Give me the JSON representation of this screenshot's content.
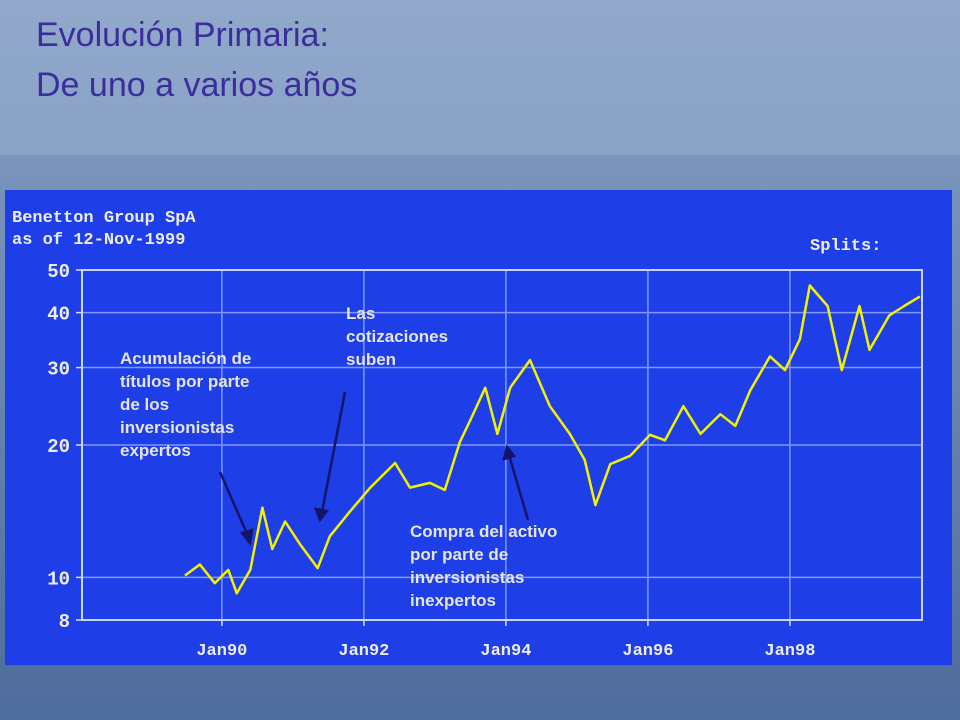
{
  "chart_data": {
    "type": "line",
    "title": [
      "Evolución Primaria:",
      "De uno a varios años"
    ],
    "chart_header": [
      "Benetton Group SpA",
      "as of 12-Nov-1999"
    ],
    "splits_label": "Splits:",
    "annotations": [
      [
        "Acumulación de",
        "títulos por parte",
        "de los",
        "inversionistas",
        "expertos"
      ],
      [
        "Las",
        "cotizaciones",
        "suben"
      ],
      [
        "Compra del activo",
        "por parte de",
        "inversionistas",
        "inexpertos"
      ]
    ],
    "x": [
      1989.48,
      1989.69,
      1989.9,
      1990.09,
      1990.21,
      1990.4,
      1990.57,
      1990.71,
      1990.89,
      1991.1,
      1991.35,
      1991.52,
      1991.8,
      1992.09,
      1992.44,
      1992.65,
      1992.93,
      1993.14,
      1993.35,
      1993.5,
      1993.71,
      1993.88,
      1994.06,
      1994.34,
      1994.62,
      1994.9,
      1995.11,
      1995.26,
      1995.47,
      1995.75,
      1996.03,
      1996.24,
      1996.5,
      1996.74,
      1997.02,
      1997.23,
      1997.44,
      1997.72,
      1997.93,
      1998.14,
      1998.28,
      1998.53,
      1998.73,
      1998.98,
      1999.12,
      1999.4,
      1999.61,
      1999.83
    ],
    "values": [
      10.1,
      10.7,
      9.7,
      10.4,
      9.2,
      10.4,
      14.4,
      11.6,
      13.4,
      11.9,
      10.5,
      12.4,
      14.1,
      16.0,
      18.2,
      16.0,
      16.4,
      15.8,
      20.3,
      22.8,
      27.0,
      21.2,
      27.0,
      31.2,
      24.5,
      21.2,
      18.5,
      14.6,
      18.1,
      18.9,
      21.1,
      20.5,
      24.5,
      21.2,
      23.5,
      22.1,
      26.6,
      31.8,
      29.6,
      34.8,
      46.1,
      41.4,
      29.6,
      41.4,
      32.9,
      39.4,
      41.4,
      43.5
    ],
    "color": "#f2f200",
    "xlim": [
      1988.03,
      1999.86
    ],
    "xticks": [
      {
        "value": 1990,
        "label": "Jan90"
      },
      {
        "value": 1992,
        "label": "Jan92"
      },
      {
        "value": 1994,
        "label": "Jan94"
      },
      {
        "value": 1996,
        "label": "Jan96"
      },
      {
        "value": 1998,
        "label": "Jan98"
      }
    ],
    "ylim": [
      8,
      50
    ],
    "yticks": [
      8,
      10,
      20,
      30,
      40,
      50
    ],
    "yscale": "log",
    "grid": true
  }
}
